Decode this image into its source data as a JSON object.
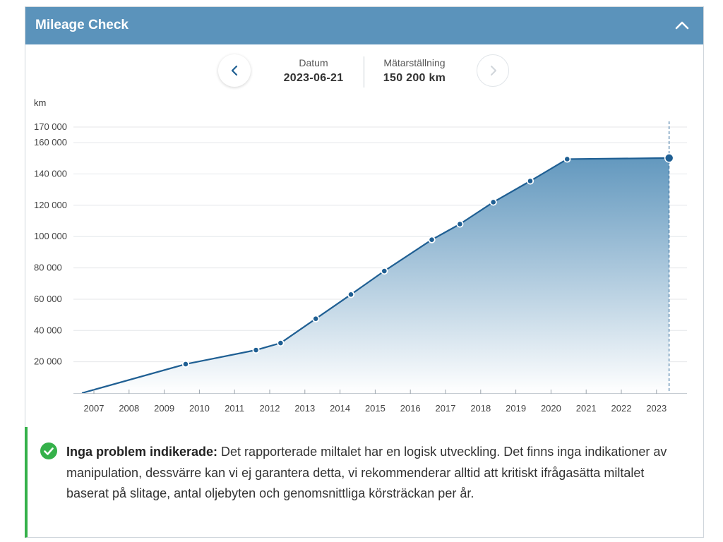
{
  "header": {
    "title": "Mileage Check"
  },
  "nav": {
    "date_label": "Datum",
    "date_value": "2023-06-21",
    "odometer_label": "Mätarställning",
    "odometer_value": "150 200 km"
  },
  "chart_data": {
    "type": "area",
    "ylabel": "km",
    "ylim": [
      0,
      170000
    ],
    "y_ticks": [
      20000,
      40000,
      60000,
      80000,
      100000,
      120000,
      140000,
      160000,
      170000
    ],
    "y_tick_labels": [
      "20 000",
      "40 000",
      "60 000",
      "80 000",
      "100 000",
      "120 000",
      "140 000",
      "160 000",
      "170 000"
    ],
    "x_tick_labels": [
      "2007",
      "2008",
      "2009",
      "2010",
      "2011",
      "2012",
      "2013",
      "2014",
      "2015",
      "2016",
      "2017",
      "2018",
      "2019",
      "2020",
      "2021",
      "2022",
      "2023"
    ],
    "xlim": [
      2006.8,
      2023.9
    ],
    "grid": true,
    "series": [
      {
        "values": [
          [
            2006.8,
            0
          ],
          [
            2009.75,
            18500
          ],
          [
            2011.75,
            27500
          ],
          [
            2012.45,
            32000
          ],
          [
            2013.45,
            47500
          ],
          [
            2014.45,
            63000
          ],
          [
            2015.4,
            78000
          ],
          [
            2016.75,
            98000
          ],
          [
            2017.55,
            108000
          ],
          [
            2018.5,
            122000
          ],
          [
            2019.55,
            135500
          ],
          [
            2020.6,
            149500
          ],
          [
            2023.5,
            150200
          ]
        ]
      }
    ],
    "colors": {
      "line": "#1f5f93",
      "fill_top": "#5b93bb",
      "fill_bottom": "#ffffff"
    }
  },
  "notice": {
    "title": "Inga problem indikerade:",
    "body": " Det rapporterade miltalet har en logisk utveckling. Det finns inga indikationer av manipulation, dessvärre kan vi ej garantera detta, vi rekommenderar alltid att kritiskt ifrågasätta miltalet baserat på slitage, antal oljebyten och genomsnittliga körsträckan per år.",
    "status_color": "#35b14a"
  }
}
